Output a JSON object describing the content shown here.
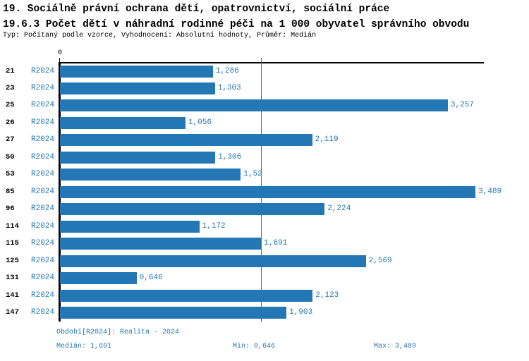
{
  "header": {
    "title_line1": "19. Sociálně právní ochrana dětí, opatrovnictví, sociální práce",
    "title_line2": "19.6.3 Počet dětí v náhradní rodinné péči na 1 000 obyvatel správního obvodu",
    "subtitle": "Typ: Počítaný podle vzorce, Vyhodnocení: Absolutní hodnoty, Průměr: Medián"
  },
  "chart_data": {
    "type": "bar",
    "orientation": "horizontal",
    "title": "19.6.3 Počet dětí v náhradní rodinné péči na 1 000 obyvatel správního obvodu",
    "categories": [
      "21",
      "23",
      "25",
      "26",
      "27",
      "50",
      "53",
      "85",
      "96",
      "114",
      "115",
      "125",
      "131",
      "141",
      "147"
    ],
    "series": [
      {
        "name": "R2024",
        "values": [
          1.286,
          1.303,
          3.257,
          1.056,
          2.119,
          1.306,
          1.52,
          3.489,
          2.224,
          1.172,
          1.691,
          2.569,
          0.646,
          2.123,
          1.903
        ],
        "value_labels": [
          "1,286",
          "1,303",
          "3,257",
          "1,056",
          "2,119",
          "1,306",
          "1,52",
          "3,489",
          "2,224",
          "1,172",
          "1,691",
          "2,569",
          "0,646",
          "2,123",
          "1,903"
        ]
      }
    ],
    "xlabel": "",
    "ylabel": "",
    "xlim": [
      0,
      3.56
    ],
    "axis_origin_label": "0",
    "grid": false,
    "legend": false,
    "median_line_value": 1.691
  },
  "footer": {
    "period": "Období[R2024]: Realita - 2024",
    "median": "Medián: 1,691",
    "min": "Min: 0,646",
    "max": "Max: 3,489"
  },
  "colors": {
    "accent_blue": "#2377b4",
    "text_black": "#000000",
    "background": "#ffffff"
  }
}
